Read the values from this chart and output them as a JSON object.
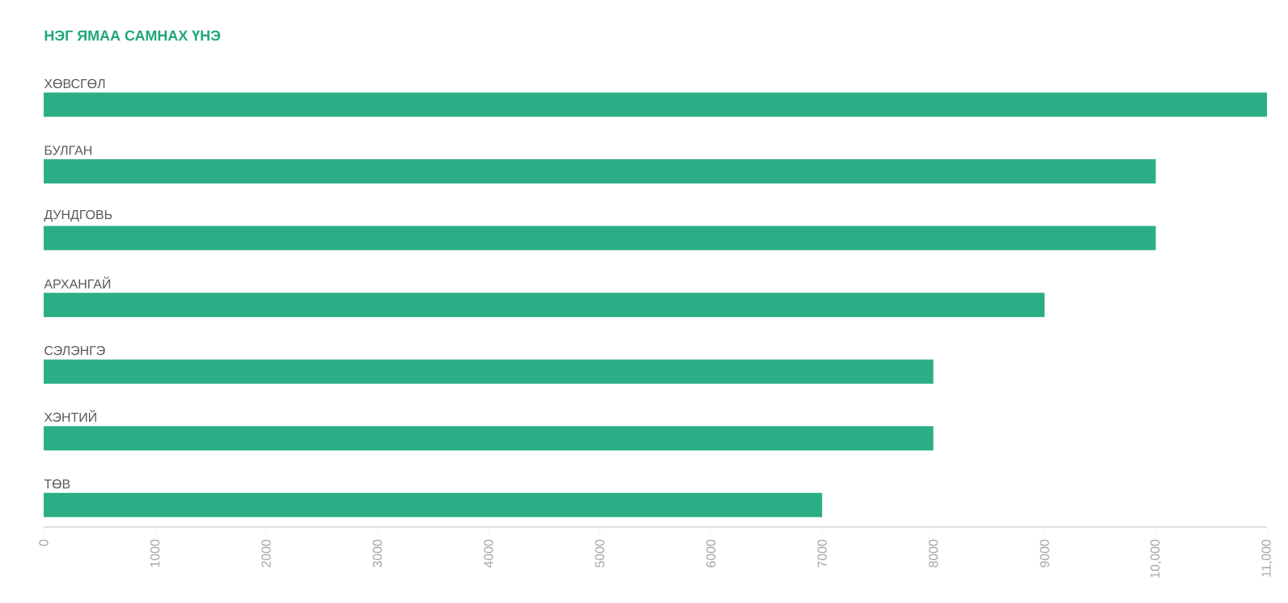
{
  "chart_data": {
    "type": "bar",
    "orientation": "horizontal",
    "title": "НЭГ ЯМАА САМНАХ ҮНЭ",
    "categories": [
      "ХӨВСГӨЛ",
      "БУЛГАН",
      "ДУНДГОВЬ",
      "АРХАНГАЙ",
      "СЭЛЭНГЭ",
      "ХЭНТИЙ",
      "ТӨВ"
    ],
    "values": [
      11000,
      10000,
      10000,
      9000,
      8000,
      8000,
      7000
    ],
    "color": "#2bae85",
    "xlim": [
      0,
      11000
    ],
    "xticks": [
      0,
      1000,
      2000,
      3000,
      4000,
      5000,
      6000,
      7000,
      8000,
      9000,
      {
        "value": 10000,
        "label": "10,000"
      },
      {
        "value": 11000,
        "label": "11,000"
      }
    ],
    "grid": false
  }
}
